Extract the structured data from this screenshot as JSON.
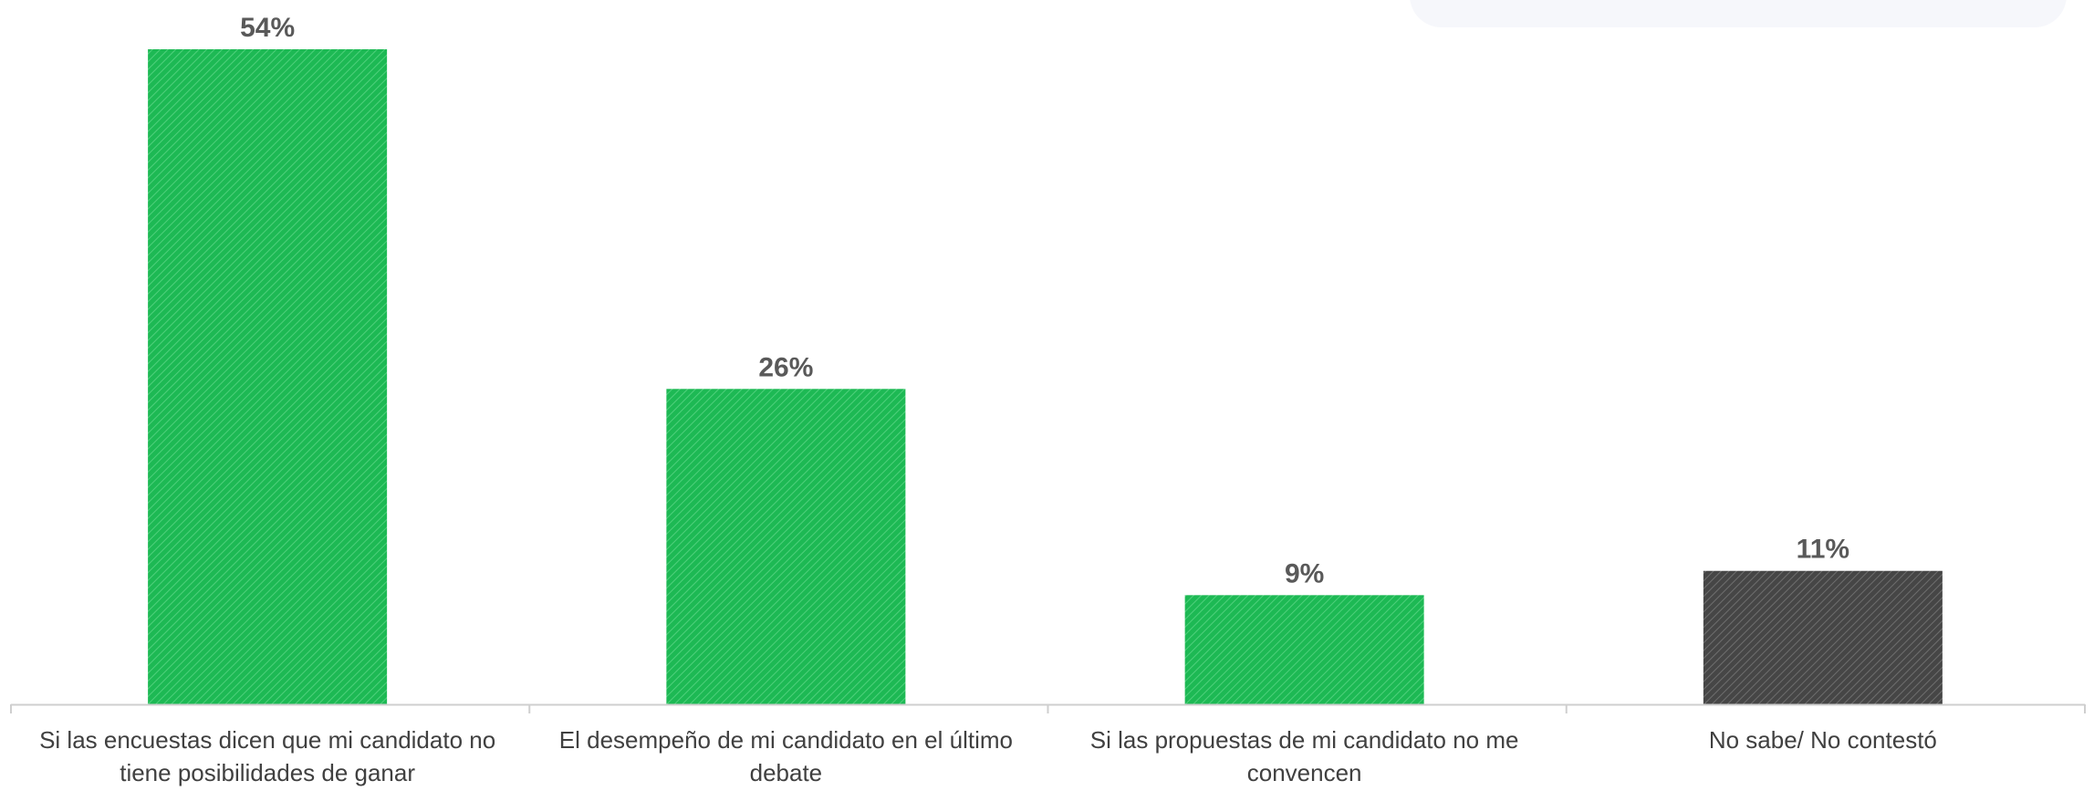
{
  "chart_data": {
    "type": "bar",
    "categories": [
      [
        "Si las encuestas dicen que mi candidato no",
        "tiene posibilidades de ganar"
      ],
      [
        "El desempeño de mi candidato en el último",
        "debate"
      ],
      [
        "Si las propuestas de mi candidato no me",
        "convencen"
      ],
      [
        "No sabe/ No contestó"
      ]
    ],
    "values": [
      54,
      26,
      9,
      11
    ],
    "data_labels": [
      "54%",
      "26%",
      "9%",
      "11%"
    ],
    "bar_colors": [
      "#1db954",
      "#1db954",
      "#1db954",
      "#4a4a4a"
    ],
    "ylim": [
      0,
      54
    ],
    "grid": false,
    "legend": "none"
  },
  "colors": {
    "green": "#1db954",
    "gray": "#4a4a4a",
    "label_text": "#404040",
    "value_text": "#595959",
    "axis": "#cfcfcf"
  }
}
